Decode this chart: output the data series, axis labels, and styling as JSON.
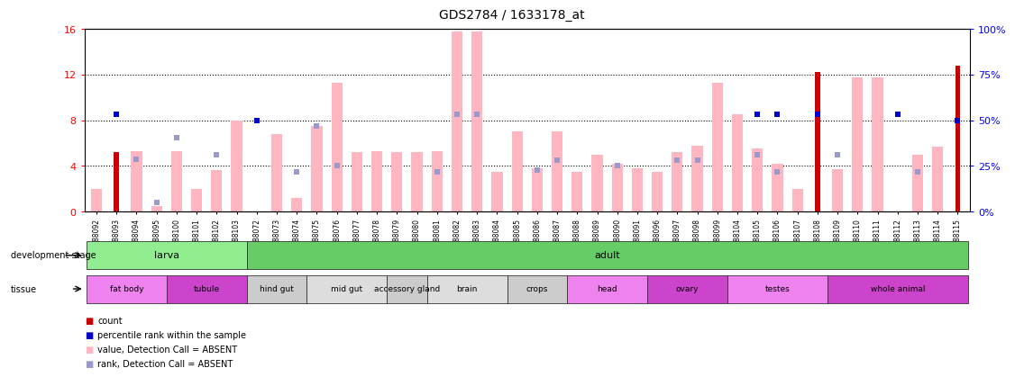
{
  "title": "GDS2784 / 1633178_at",
  "samples": [
    "GSM188092",
    "GSM188093",
    "GSM188094",
    "GSM188095",
    "GSM188100",
    "GSM188101",
    "GSM188102",
    "GSM188103",
    "GSM188072",
    "GSM188073",
    "GSM188074",
    "GSM188075",
    "GSM188076",
    "GSM188077",
    "GSM188078",
    "GSM188079",
    "GSM188080",
    "GSM188081",
    "GSM188082",
    "GSM188083",
    "GSM188084",
    "GSM188085",
    "GSM188086",
    "GSM188087",
    "GSM188088",
    "GSM188089",
    "GSM188090",
    "GSM188091",
    "GSM188096",
    "GSM188097",
    "GSM188098",
    "GSM188099",
    "GSM188104",
    "GSM188105",
    "GSM188106",
    "GSM188107",
    "GSM188108",
    "GSM188109",
    "GSM188110",
    "GSM188111",
    "GSM188112",
    "GSM188113",
    "GSM188114",
    "GSM188115"
  ],
  "count_values": [
    null,
    5.2,
    null,
    null,
    null,
    null,
    null,
    null,
    null,
    null,
    null,
    null,
    null,
    null,
    null,
    null,
    null,
    null,
    null,
    null,
    null,
    null,
    null,
    null,
    null,
    null,
    null,
    null,
    null,
    null,
    null,
    null,
    null,
    null,
    null,
    null,
    12.2,
    null,
    null,
    null,
    null,
    null,
    null,
    12.8
  ],
  "percentile_values": [
    null,
    8.5,
    null,
    null,
    null,
    null,
    null,
    null,
    8.0,
    null,
    null,
    null,
    null,
    null,
    null,
    null,
    null,
    null,
    null,
    null,
    null,
    null,
    null,
    null,
    null,
    null,
    null,
    null,
    null,
    null,
    null,
    null,
    null,
    8.5,
    8.5,
    null,
    8.5,
    null,
    null,
    null,
    8.5,
    null,
    null,
    8.0
  ],
  "absent_value": [
    2.0,
    null,
    5.3,
    0.5,
    5.3,
    2.0,
    3.6,
    8.0,
    null,
    6.8,
    1.2,
    7.5,
    11.3,
    5.2,
    5.3,
    5.2,
    5.2,
    5.3,
    15.8,
    15.8,
    3.5,
    7.0,
    3.8,
    7.0,
    3.5,
    5.0,
    4.2,
    3.8,
    3.5,
    5.2,
    5.8,
    11.3,
    8.5,
    5.5,
    4.2,
    2.0,
    null,
    3.7,
    11.8,
    11.8,
    null,
    5.0,
    5.7,
    null
  ],
  "absent_rank": [
    null,
    null,
    4.6,
    0.8,
    6.5,
    null,
    5.0,
    null,
    null,
    null,
    3.5,
    7.5,
    4.0,
    null,
    null,
    null,
    null,
    3.5,
    8.5,
    8.5,
    null,
    null,
    3.6,
    4.5,
    null,
    null,
    4.0,
    null,
    null,
    4.5,
    4.5,
    null,
    null,
    5.0,
    3.5,
    null,
    8.5,
    5.0,
    null,
    null,
    null,
    3.5,
    null,
    null
  ],
  "ylim": [
    0,
    16
  ],
  "yticks": [
    0,
    4,
    8,
    12,
    16
  ],
  "right_yticks": [
    0,
    25,
    50,
    75,
    100
  ],
  "bar_color_absent": "#FFB6C1",
  "bar_color_count": "#CC0000",
  "dot_color_present": "#0000CC",
  "dot_color_absent": "#9999CC",
  "larva_count": 8,
  "tissue_groups": [
    {
      "name": "fat body",
      "start": 0,
      "end": 4,
      "color": "#EE82EE"
    },
    {
      "name": "tubule",
      "start": 4,
      "end": 8,
      "color": "#CC44CC"
    },
    {
      "name": "hind gut",
      "start": 8,
      "end": 11,
      "color": "#CCCCCC"
    },
    {
      "name": "mid gut",
      "start": 11,
      "end": 15,
      "color": "#DDDDDD"
    },
    {
      "name": "accessory gland",
      "start": 15,
      "end": 17,
      "color": "#CCCCCC"
    },
    {
      "name": "brain",
      "start": 17,
      "end": 21,
      "color": "#DDDDDD"
    },
    {
      "name": "crops",
      "start": 21,
      "end": 24,
      "color": "#CCCCCC"
    },
    {
      "name": "head",
      "start": 24,
      "end": 28,
      "color": "#EE82EE"
    },
    {
      "name": "ovary",
      "start": 28,
      "end": 32,
      "color": "#CC44CC"
    },
    {
      "name": "testes",
      "start": 32,
      "end": 37,
      "color": "#EE82EE"
    },
    {
      "name": "whole animal",
      "start": 37,
      "end": 44,
      "color": "#CC44CC"
    }
  ],
  "larva_color": "#90EE90",
  "adult_color": "#66CC66",
  "dev_larva_border_color": "#44AA44",
  "dev_adult_border_color": "#44AA44"
}
